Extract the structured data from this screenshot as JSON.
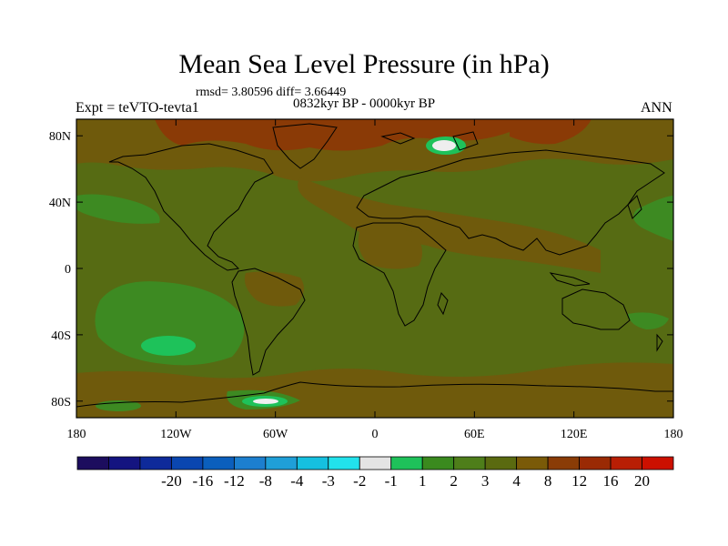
{
  "chart_data": {
    "type": "heatmap",
    "title": "Mean Sea Level Pressure (in hPa)",
    "stats_text": "rmsd= 3.80596 diff= 3.66449",
    "period_text": "0832kyr BP - 0000kyr BP",
    "experiment_text": "Expt = teVTO-tevta1",
    "season_text": "ANN",
    "rmsd": 3.80596,
    "diff": 3.66449,
    "projection": "cylindrical equidistant",
    "xlim": [
      -180,
      180
    ],
    "ylim": [
      -90,
      90
    ],
    "x_ticks": [
      {
        "value": -180,
        "label": "180"
      },
      {
        "value": -120,
        "label": "120W"
      },
      {
        "value": -60,
        "label": "60W"
      },
      {
        "value": 0,
        "label": "0"
      },
      {
        "value": 60,
        "label": "60E"
      },
      {
        "value": 120,
        "label": "120E"
      },
      {
        "value": 180,
        "label": "180"
      }
    ],
    "y_ticks": [
      {
        "value": 80,
        "label": "80N"
      },
      {
        "value": 40,
        "label": "40N"
      },
      {
        "value": 0,
        "label": "0"
      },
      {
        "value": -40,
        "label": "40S"
      },
      {
        "value": -80,
        "label": "80S"
      }
    ],
    "colorbar": {
      "colors": [
        "#1c0d5e",
        "#141480",
        "#0e2a9a",
        "#0a46b0",
        "#0b5fbd",
        "#1c7fcf",
        "#1f9fd8",
        "#15c0e0",
        "#22e2ec",
        "#e4e4e4",
        "#1ec25a",
        "#3a8a1e",
        "#4e7e1a",
        "#5a6a10",
        "#7a5a08",
        "#8a3c06",
        "#9a2a04",
        "#b81e04",
        "#cc1000"
      ],
      "labels": [
        "-20",
        "-16",
        "-12",
        "-8",
        "-4",
        "-3",
        "-2",
        "-1",
        "1",
        "2",
        "3",
        "4",
        "8",
        "12",
        "16",
        "20"
      ]
    },
    "field": {
      "background_value_range": [
        3,
        4
      ],
      "regions": [
        {
          "lon": -60,
          "lat": 88,
          "value_class": "8 to 12"
        },
        {
          "lon": -15,
          "lat": 75,
          "value_class": "4 to 8"
        },
        {
          "lon": 10,
          "lat": 20,
          "value_class": "4 to 8"
        },
        {
          "lon": 45,
          "lat": 78,
          "value_class": "-1 to 1"
        },
        {
          "lon": -140,
          "lat": -30,
          "value_class": "2 to 3"
        },
        {
          "lon": -135,
          "lat": -45,
          "value_class": "1 to 2"
        },
        {
          "lon": -62,
          "lat": -83,
          "value_class": "-1 to 1"
        },
        {
          "lon": 0,
          "lat": -60,
          "value_class": "4 to 8"
        },
        {
          "lon": 160,
          "lat": 35,
          "value_class": "2 to 3"
        }
      ]
    }
  }
}
